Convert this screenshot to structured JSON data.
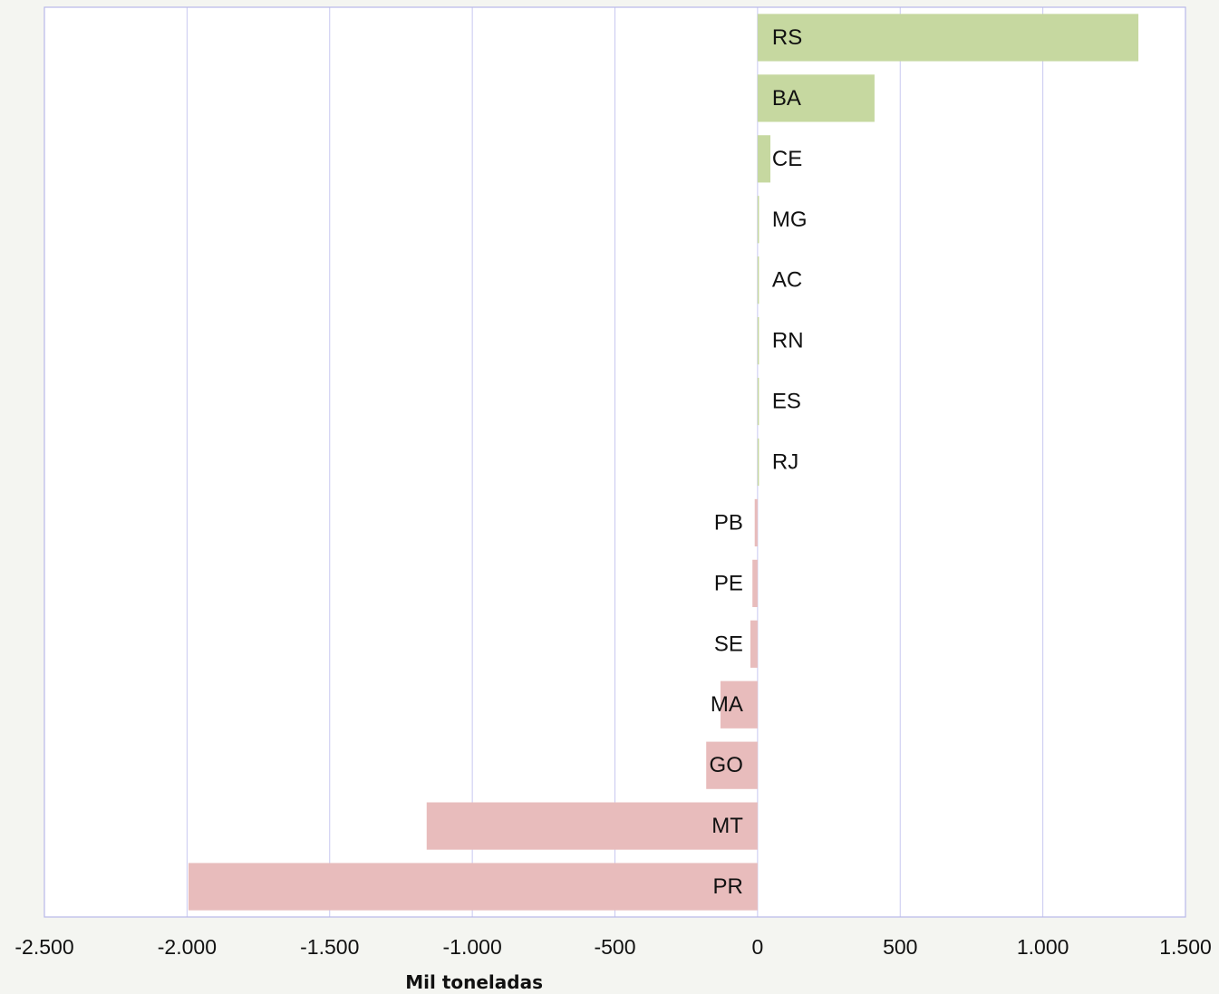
{
  "chart_data": {
    "type": "bar",
    "orientation": "horizontal",
    "categories": [
      "RS",
      "BA",
      "CE",
      "MG",
      "AC",
      "RN",
      "ES",
      "RJ",
      "PB",
      "PE",
      "SE",
      "MA",
      "GO",
      "MT",
      "PR"
    ],
    "values": [
      1335,
      410,
      45,
      5,
      2,
      2,
      2,
      2,
      -10,
      -18,
      -25,
      -130,
      -180,
      -1160,
      -1995
    ],
    "xlabel": "Mil toneladas",
    "xlim": [
      -2500,
      1500
    ],
    "xticks": [
      -2500,
      -2000,
      -1500,
      -1000,
      -500,
      0,
      500,
      1000,
      1500
    ],
    "xtick_labels": [
      "-2.500",
      "-2.000",
      "-1.500",
      "-1.000",
      "-500",
      "0",
      "500",
      "1.000",
      "1.500"
    ],
    "grid": "vertical",
    "colors": {
      "positive": "#c6d8a0",
      "negative": "#e8bcbc",
      "grid": "#c8c8f0",
      "frame": "#b8b8e8",
      "plot_background": "#ffffff",
      "page_background": "#f4f5f1"
    }
  }
}
